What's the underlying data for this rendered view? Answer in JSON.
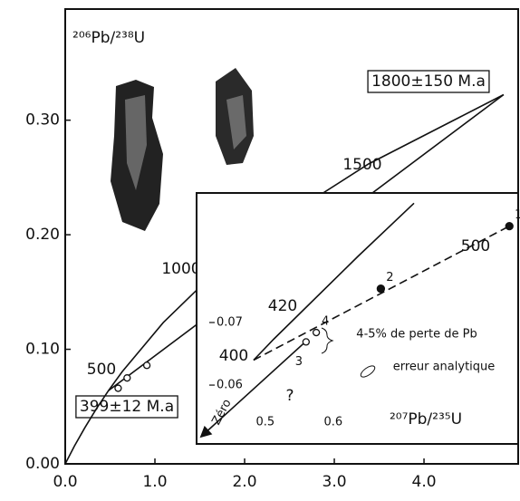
{
  "chart_data": [
    {
      "type": "line",
      "y_label": "²⁰⁶Pb/²³⁸U",
      "xlim": [
        0,
        5.05
      ],
      "ylim": [
        0,
        0.397
      ],
      "xticks": [
        {
          "value": 0,
          "label": "0.0"
        },
        {
          "value": 1,
          "label": "1.0"
        },
        {
          "value": 2,
          "label": "2.0"
        },
        {
          "value": 3,
          "label": "3.0"
        },
        {
          "value": 4,
          "label": "4.0"
        }
      ],
      "yticks": [
        {
          "value": 0,
          "label": "0.00"
        },
        {
          "value": 0.1,
          "label": "0.10"
        },
        {
          "value": 0.2,
          "label": "0.20"
        },
        {
          "value": 0.3,
          "label": "0.30"
        }
      ],
      "series": [
        {
          "color": "#111",
          "x": [
            0,
            0.1035,
            0.2177,
            0.3437,
            0.4828,
            0.6363,
            1.093,
            1.6774,
            2.4248,
            3.3813,
            4.8871
          ],
          "values": [
            0,
            0.01563,
            0.03151,
            0.04763,
            0.06399,
            0.08056,
            0.1233,
            0.1678,
            0.2139,
            0.2618,
            0.3223
          ]
        },
        {
          "color": "#111",
          "x": [
            0.4828,
            4.8871
          ],
          "values": [
            0.06399,
            0.3223
          ]
        },
        {
          "color": "#111",
          "marker": "open",
          "x": [
            0.59,
            0.69,
            0.91
          ],
          "values": [
            0.066,
            0.075,
            0.086
          ]
        }
      ],
      "annotations": [
        "1500",
        "1000",
        "500",
        "1800±150 M.a",
        "399±12 M.a"
      ]
    },
    {
      "type": "line",
      "x_label": "²⁰⁷Pb/²³⁵U",
      "xlim": [
        0.399,
        0.872
      ],
      "ylim": [
        0.0506,
        0.0907
      ],
      "xticks": [
        0.5,
        0.6
      ],
      "yticks": [
        0.06,
        0.07
      ],
      "series": [
        {
          "color": "#111",
          "x": [
            0.4828,
            0.5123,
            0.6363,
            0.7188
          ],
          "values": [
            0.06399,
            0.06732,
            0.08056,
            0.08906
          ]
        },
        {
          "color": "#111",
          "style": "dashed",
          "x": [
            0.4828,
            0.859
          ],
          "values": [
            0.06399,
            0.0854
          ]
        },
        {
          "color": "#111",
          "style": "arrow",
          "x": [
            0.563,
            0.41
          ],
          "values": [
            0.0673,
            0.0522
          ]
        },
        {
          "color": "#111",
          "marker": "filled",
          "x": [
            0.859,
            0.67
          ],
          "values": [
            0.0854,
            0.0754
          ],
          "labels": [
            "1",
            "2"
          ]
        },
        {
          "color": "#111",
          "marker": "open",
          "x": [
            0.56,
            0.575
          ],
          "values": [
            0.0669,
            0.0684
          ],
          "labels": [
            "3",
            "4"
          ]
        }
      ],
      "annotations": [
        "420",
        "400",
        "500",
        "4-5% de perte de Pb",
        "erreur analytique",
        "?",
        "Zéro"
      ]
    }
  ]
}
